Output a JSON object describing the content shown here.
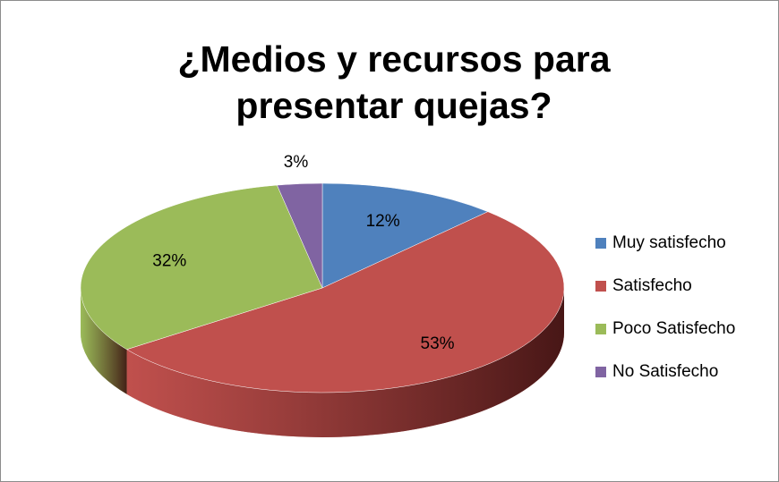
{
  "chart_data": {
    "type": "pie3d",
    "title": "¿Medios y recursos para presentar quejas?",
    "categories": [
      "Muy satisfecho",
      "Satisfecho",
      "Poco Satisfecho",
      "No Satisfecho"
    ],
    "values": [
      12,
      53,
      32,
      3
    ],
    "value_labels": [
      "12%",
      "53%",
      "32%",
      "3%"
    ],
    "colors": [
      "#4f81bd",
      "#c0504d",
      "#9bbb59",
      "#8064a2"
    ],
    "legend": "right"
  }
}
